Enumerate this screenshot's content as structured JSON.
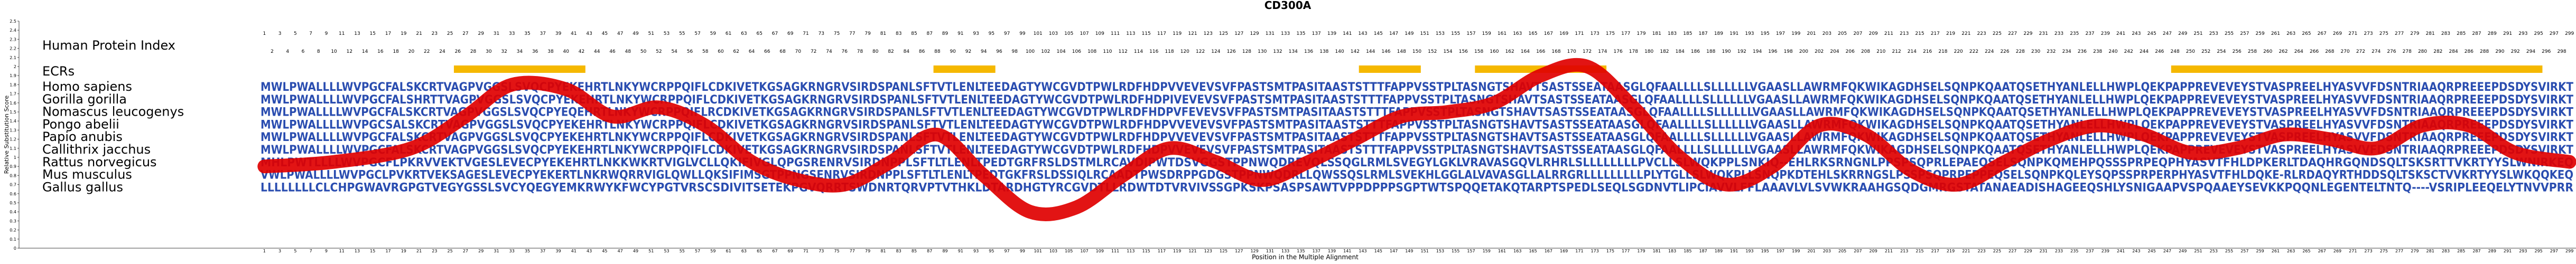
{
  "chart_data": {
    "type": "line",
    "title": "CD300A",
    "xlabel": "Position in the Multiple Alignment",
    "ylabel": "Relative Substitution Score",
    "xlim": [
      1,
      299
    ],
    "ylim": [
      0,
      2.5
    ],
    "y_ticks": [
      "0",
      "0.1",
      "0.2",
      "0.3",
      "0.4",
      "0.5",
      "0.6",
      "0.7",
      "0.8",
      "0.9",
      "1",
      "1.1",
      "1.2",
      "1.3",
      "1.4",
      "1.5",
      "1.6",
      "1.7",
      "1.8",
      "1.9",
      "2",
      "2.1",
      "2.2",
      "2.3",
      "2.4",
      "2.5"
    ],
    "track_labels": {
      "index": "Human Protein Index",
      "ecr": "ECRs"
    },
    "human_index": {
      "odd_row": [
        "1",
        "3",
        "5",
        "7",
        "9",
        "11",
        "13",
        "15",
        "17",
        "19",
        "21",
        "23",
        "25",
        "27",
        "29",
        "31",
        "33",
        "35",
        "37",
        "39",
        "41",
        "43",
        "45",
        "47",
        "49",
        "51",
        "53",
        "55",
        "57",
        "59",
        "61",
        "63",
        "65",
        "67",
        "69",
        "71",
        "73",
        "75",
        "77",
        "79",
        "81",
        "83",
        "85",
        "87",
        "89",
        "91",
        "93",
        "95",
        "97",
        "99",
        "101",
        "103",
        "105",
        "107",
        "109",
        "111",
        "113",
        "115",
        "117",
        "119",
        "121",
        "123",
        "125",
        "127",
        "129",
        "131",
        "133",
        "135",
        "137",
        "139",
        "141",
        "143",
        "145",
        "147",
        "149",
        "151",
        "153",
        "155",
        "157",
        "159",
        "161",
        "163",
        "165",
        "167",
        "169",
        "171",
        "173",
        "175",
        "177",
        "179",
        "181",
        "183",
        "185",
        "187",
        "189",
        "191",
        "193",
        "195",
        "197",
        "199",
        "201",
        "203",
        "205",
        "207",
        "209",
        "211",
        "213",
        "215",
        "217",
        "219",
        "221",
        "223",
        "225",
        "227",
        "229",
        "231",
        "233",
        "235",
        "237",
        "239",
        "241",
        "243",
        "245",
        "247",
        "249",
        "251",
        "253",
        "255",
        "257",
        "259",
        "261",
        "263",
        "265",
        "267",
        "269",
        "271",
        "273",
        "275",
        "277",
        "279",
        "281",
        "283",
        "285",
        "287",
        "289",
        "291",
        "293",
        "295",
        "297",
        "299"
      ],
      "even_row": [
        "2",
        "4",
        "6",
        "8",
        "10",
        "12",
        "14",
        "16",
        "18",
        "20",
        "22",
        "24",
        "26",
        "28",
        "30",
        "32",
        "34",
        "36",
        "38",
        "40",
        "42",
        "44",
        "46",
        "48",
        "50",
        "52",
        "54",
        "56",
        "58",
        "60",
        "62",
        "64",
        "66",
        "68",
        "70",
        "72",
        "74",
        "76",
        "78",
        "80",
        "82",
        "84",
        "86",
        "88",
        "90",
        "92",
        "94",
        "96",
        "98",
        "100",
        "102",
        "104",
        "106",
        "108",
        "110",
        "112",
        "114",
        "116",
        "118",
        "120",
        "122",
        "124",
        "126",
        "128",
        "130",
        "132",
        "134",
        "136",
        "138",
        "140",
        "142",
        "144",
        "146",
        "148",
        "150",
        "152",
        "154",
        "156",
        "158",
        "160",
        "162",
        "164",
        "166",
        "168",
        "170",
        "172",
        "174",
        "176",
        "178",
        "180",
        "182",
        "184",
        "186",
        "188",
        "190",
        "192",
        "194",
        "196",
        "198",
        "200",
        "202",
        "204",
        "206",
        "208",
        "210",
        "212",
        "214",
        "216",
        "218",
        "220",
        "222",
        "224",
        "226",
        "228",
        "230",
        "232",
        "234",
        "236",
        "238",
        "240",
        "242",
        "244",
        "246",
        "248",
        "250",
        "252",
        "254",
        "256",
        "258",
        "260",
        "262",
        "264",
        "266",
        "268",
        "270",
        "272",
        "274",
        "276",
        "278",
        "280",
        "282",
        "284",
        "286",
        "288",
        "290",
        "292",
        "294",
        "296",
        "298"
      ]
    },
    "ecr_regions": [
      [
        26,
        42
      ],
      [
        88,
        95
      ],
      [
        143,
        150
      ],
      [
        158,
        174
      ],
      [
        248,
        295
      ]
    ],
    "species": [
      {
        "name": "Homo sapiens",
        "sequence": "MWLPWALLLLWVPGCFALSKCRTVAGPVGGSLSVQCPYEKEHRTLNKYWCRPPQIFLCDKIVETKGSAGKRNGRVSIRDSPANLSFTVTLENLTEEDAGTYWCGVDTPWLRDFHDPVVEVEVSVFPASTSMTPASITAASTSTTTFAPPVSSTPLTASNGTSHAVTSASTSSEATAASGLQFAALLLLSLLLLLLVGAASLLAWRMFQKWIKAGDHSELSQNPKQAATQSETHYANLELLHWPLQEKPAPPREVEVEYSTVASPREELHYASVVFDSNTRIAAQRPREEEPDSDYSVIRKT"
      },
      {
        "name": "Gorilla gorilla",
        "sequence": "MWLPWALLLLWVPGCFALSHRTTVAGPVGGSLSVQCPYEKEHRTLNKYWCRPPQIFLCDKIVETKGSAGKRNGRVSIRDSPANLSFTVTLENLTEEDAGTYWCGVDTPWLRDFHDPIVEVEVSVFPASTSMTPASITAASTSTTTFAPPVSSTPLTASNGTSHAVTSASTSSEATAASGLQFAALLLLSLLLLLLVGAASLLAWRMFQKWIKAGDHSELSQNPKQAATQSETHYANLELLHWPLQEKPAPPREVEVEYSTVASPREELHYASVVFDSNTRIAAQRPREEEPDSDYSVIRKT"
      },
      {
        "name": "Nomascus leucogenys",
        "sequence": "MWLPWALLLLWVPGCFALSKCRTVAGPVGGSLSVQCPYEQEHRTLNKYWCRPPQIFLRCDKIVETKGSAGKRNGRVSIRDSPANLSFTVTLENLTEEDAGTYWCGVDTPWLRDFHDPVFEVEVSVFPASTSMTPASITAASTSTTTFAPPVSSTPLTASNGTSHAVTSASTSSEATAASGLQFAALLLLSLLLLLLVGAASLLAWRMFQKWIKAGDHSELSQNPKQAATQSETHYANLELLHWPLQEKPAPPREVEVEYSTVASPREELHYASVVFDSNTRIAAQRPREEEPDSDYSVIRKT"
      },
      {
        "name": "Pongo abelii",
        "sequence": "MWLPWALLLLWVPGCSALSKCRTVAGPVGGSLSVQCPYEKEHRTLNKYWCRPPQIFLCDKIVETKGSAGKRNGRVSIRDSPANLSFTVTLENLTEEDAGTYWCGVDTPWLRDFHDPVVEVEVSVFPASTSMTPASITAASTSTTTFAPPVSSTPLTASNGTSHAVTSASTSSEATAASGLQFAALLLLSLLLLLLVGAASLLAWRMFQKWIKAGDHSELSQNPKQAATQSETHYANLELLHWPLQEKPAPPREVEVEYSTVASPREELHYASVVFDSNTRIAAQRPREEEPDSDYSVIRKT"
      },
      {
        "name": "Papio anubis",
        "sequence": "MWLPWALLLLWVPGCFALSKCRTVAGPVGGSLSVQCPYEKEHRTLNKYWCRPPQIFLCDKIVETKGSAGKRNGRVSIRDSPANLSFTVTLENLTEEDAGTYWCGVDTPWLRDFHDPVVEVEVSVFPASTSMTPASITAASTSTTTFAPPVSSTPLTASNGTSHAVTSASTSSEATAASGLQFAALLLLSLLLLLLVGAASLLAWRMFQKWIKAGDHSELSQNPKQAATQSETHYANLELLHWPLQEKPAPPREVEVEYSTVASPREELHYASVVFDSNTRIAAQRPREEEPDSDYSVIRKT"
      },
      {
        "name": "Callithrix jacchus",
        "sequence": "MWLPWALLLLWVPGCFALSKCRTVAGPVGGSLSVQCPYEKEHRTLNKYWCRPPQIFLCDKIVETKGSAGKRNGRVSIRDSPANLSFTVTLENLTEEDAGTYWCGVDTPWLRDFHDPVVEVEVSVFPASTSMTPASITAASTSTTTFAPPVSSTPLTASNGTSHAVTSASTSSEATAASGLQFAALLLLSLLLLLLVGAASLLAWRMFQKWIKAGDHSELSQNPKQAATQSETHYANLELLHWPLQEKPAPPREVEVEYSTVASPREELHYASVVFDSNTRIAAQRPREEEPDSDYSVIRKT"
      },
      {
        "name": "Rattus norvegicus",
        "sequence": "MHLPWTLLLLWVPGCFLPKRVVEKTVGESLEVECPYEKEHRTLNKKWKRTVIGLVCLLQKIFIVGLQPGSRENRVSIRDNPPLSFTLTLENLTPEDTGRFRSLDSTMLRCAVDIPWTDSVGGSTPPNWQDREVQLSSQGLRMLSVEGYLGKLVRAVASGQVLRHRLSLLLLLLLLPVCLLSLWQKPPLSNKIQ--EHLRKSRNGNLPPSPSQPRLEPAEQSELSQNPKQMEHPQSSSPRPEQPHYASVTFHLDPKERLTDAQHRGQNDSQLTSKSRTTVKRTYYSLWNIRKEQ"
      },
      {
        "name": "Mus musculus",
        "sequence": "VWLPWALLLLWVPGCLPVKRTVEKSAGESLEVECPYEKERTLNKRWQRRVIGLQWLLQKSIFIMSGTPPNGSENRVSIRDNPPLSFTLTLENLTPEDTGKFRSLDSSIQLRCAADTPWSDRPPGDGSTPPNWQDRLLQWSSQSLRMLSVEKHLGGLALVAVASGLLALRRGRLLLLLLLLLPLYTGLLSLWQKPLLSNQPKDTEHLSKRRNGSLPSSPSQPRPEPPEQSELSQNPKQLEYSQPSSPRPERPHYASVTFHLDQKE-RLRDAQYRTHDDSQLTSKSCTVVKRTYYSLWKQQKEQ"
      },
      {
        "name": "Gallus gallus",
        "sequence": "LLLLLLLLCLCHPGWAVRGPGTVEGYGSSLSVCYQEGYEMKRWYKFWCYPGTVRSCSDIVITSETEKPGVQRRTSWDNRTQRVPTVTHKLDTARDHGTYRCGVDTLLRDWTDTVRVIVSSGPKSKPSASPSAWTVPPDPPPSGPTWTSPQQETAKQTARPTSPEDLSEQLSGDNVTLIPCIAVVLFFLAAAVLVLSVWKRAAHGSQDGMRGSTATANAEADISHAGEEQSHLYSNIGAAPVSPQAAEYSEVKKPQQNLEGENTELTNTQ----VSRIPLEEQELYTNVVPRR"
      }
    ],
    "score_line": {
      "series_name": "",
      "x": [
        1,
        10,
        20,
        27,
        33,
        40,
        46,
        52,
        58,
        64,
        70,
        76,
        82,
        88,
        94,
        100,
        106,
        112,
        118,
        124,
        130,
        136,
        142,
        148,
        154,
        160,
        166,
        172,
        178,
        184,
        190,
        196,
        202,
        208,
        214,
        220,
        226,
        232,
        238,
        244,
        250,
        256,
        262,
        268,
        274,
        280,
        286,
        292,
        299
      ],
      "y": [
        0.9,
        0.95,
        1.1,
        1.45,
        1.8,
        1.75,
        1.45,
        1.55,
        1.35,
        0.95,
        0.75,
        0.7,
        0.95,
        1.25,
        0.8,
        0.4,
        0.45,
        0.8,
        1.1,
        0.95,
        0.75,
        0.95,
        1.2,
        1.45,
        1.5,
        1.6,
        1.9,
        2.0,
        1.55,
        1.0,
        0.7,
        0.9,
        1.35,
        1.25,
        0.85,
        0.7,
        0.95,
        1.2,
        1.35,
        1.25,
        1.05,
        1.1,
        1.25,
        1.2,
        1.1,
        1.35,
        1.35,
        1.05,
        0.95
      ]
    },
    "colors": {
      "line": "#e00000",
      "ecr": "#f5b800",
      "sequence": "#2a4db0",
      "text": "#000000",
      "axis": "#444444"
    }
  }
}
